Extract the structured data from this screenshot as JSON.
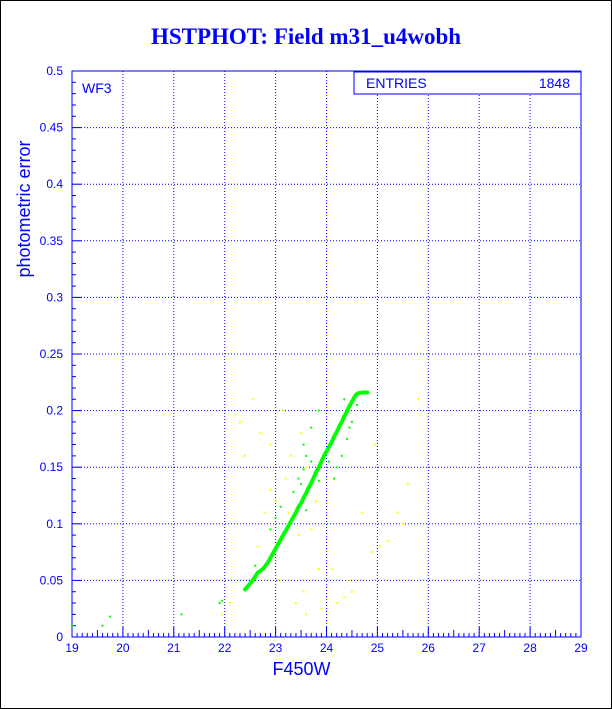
{
  "chart_data": {
    "type": "scatter",
    "title": "HSTPHOT: Field m31_u4wobh",
    "xlabel": "F450W",
    "ylabel": "photometric error",
    "xlim": [
      19,
      29
    ],
    "ylim": [
      0,
      0.5
    ],
    "x_ticks": [
      "19",
      "20",
      "21",
      "22",
      "23",
      "24",
      "25",
      "26",
      "27",
      "28",
      "29"
    ],
    "y_ticks": [
      "0",
      "0.05",
      "0.1",
      "0.15",
      "0.2",
      "0.25",
      "0.3",
      "0.35",
      "0.4",
      "0.45",
      "0.5"
    ],
    "grid": true,
    "panel_label": "WF3",
    "stats_box": {
      "label": "ENTRIES",
      "value": "1848"
    },
    "colors": {
      "axis": "#0000ff",
      "grid": "#0000ff",
      "title": "#0000ff",
      "series_main": "#00ff00",
      "series_outliers": "#ffff00"
    },
    "series": [
      {
        "color": "#00ff00",
        "points": [
          [
            19.0,
            0.01
          ],
          [
            19.6,
            0.01
          ],
          [
            19.75,
            0.018
          ],
          [
            21.15,
            0.02
          ],
          [
            21.9,
            0.03
          ],
          [
            21.95,
            0.032
          ],
          [
            22.4,
            0.042
          ],
          [
            22.55,
            0.05
          ],
          [
            22.65,
            0.057
          ],
          [
            22.75,
            0.06
          ],
          [
            22.85,
            0.066
          ],
          [
            22.9,
            0.07
          ],
          [
            22.95,
            0.074
          ],
          [
            23.0,
            0.078
          ],
          [
            23.05,
            0.082
          ],
          [
            23.1,
            0.086
          ],
          [
            23.15,
            0.09
          ],
          [
            23.2,
            0.094
          ],
          [
            23.25,
            0.098
          ],
          [
            23.3,
            0.102
          ],
          [
            23.35,
            0.106
          ],
          [
            23.4,
            0.11
          ],
          [
            23.45,
            0.115
          ],
          [
            23.5,
            0.118
          ],
          [
            23.55,
            0.123
          ],
          [
            23.6,
            0.127
          ],
          [
            23.65,
            0.132
          ],
          [
            23.7,
            0.136
          ],
          [
            23.75,
            0.141
          ],
          [
            23.8,
            0.146
          ],
          [
            23.85,
            0.15
          ],
          [
            23.9,
            0.155
          ],
          [
            23.95,
            0.16
          ],
          [
            24.0,
            0.164
          ],
          [
            24.05,
            0.168
          ],
          [
            24.1,
            0.172
          ],
          [
            24.15,
            0.177
          ],
          [
            24.2,
            0.181
          ],
          [
            24.25,
            0.186
          ],
          [
            24.3,
            0.19
          ],
          [
            24.35,
            0.195
          ],
          [
            24.4,
            0.199
          ],
          [
            24.45,
            0.204
          ],
          [
            24.5,
            0.208
          ],
          [
            24.55,
            0.212
          ],
          [
            24.6,
            0.215
          ],
          [
            24.7,
            0.216
          ],
          [
            24.8,
            0.216
          ],
          [
            23.55,
            0.148
          ],
          [
            23.5,
            0.135
          ],
          [
            23.7,
            0.155
          ],
          [
            23.6,
            0.16
          ],
          [
            23.45,
            0.14
          ],
          [
            23.55,
            0.17
          ],
          [
            23.0,
            0.105
          ],
          [
            22.9,
            0.095
          ],
          [
            23.1,
            0.115
          ],
          [
            23.7,
            0.185
          ],
          [
            23.85,
            0.2
          ],
          [
            24.2,
            0.15
          ],
          [
            24.3,
            0.16
          ],
          [
            24.4,
            0.175
          ],
          [
            24.45,
            0.185
          ],
          [
            24.15,
            0.14
          ],
          [
            22.6,
            0.063
          ],
          [
            23.35,
            0.128
          ],
          [
            23.6,
            0.112
          ],
          [
            23.85,
            0.138
          ],
          [
            24.05,
            0.155
          ],
          [
            24.6,
            0.205
          ],
          [
            24.35,
            0.21
          ],
          [
            24.5,
            0.19
          ]
        ]
      },
      {
        "color": "#ffff00",
        "points": [
          [
            22.3,
            0.19
          ],
          [
            22.4,
            0.16
          ],
          [
            22.55,
            0.21
          ],
          [
            22.7,
            0.18
          ],
          [
            22.8,
            0.11
          ],
          [
            22.65,
            0.08
          ],
          [
            22.9,
            0.17
          ],
          [
            23.15,
            0.2
          ],
          [
            23.2,
            0.14
          ],
          [
            23.3,
            0.16
          ],
          [
            23.5,
            0.18
          ],
          [
            23.6,
            0.15
          ],
          [
            23.7,
            0.095
          ],
          [
            23.8,
            0.12
          ],
          [
            23.45,
            0.09
          ],
          [
            23.25,
            0.11
          ],
          [
            23.0,
            0.12
          ],
          [
            22.9,
            0.13
          ],
          [
            23.4,
            0.03
          ],
          [
            23.55,
            0.04
          ],
          [
            23.6,
            0.02
          ],
          [
            23.9,
            0.025
          ],
          [
            24.2,
            0.03
          ],
          [
            24.35,
            0.035
          ],
          [
            24.5,
            0.04
          ],
          [
            24.9,
            0.075
          ],
          [
            25.05,
            0.08
          ],
          [
            25.2,
            0.085
          ],
          [
            25.4,
            0.11
          ],
          [
            25.6,
            0.135
          ],
          [
            25.8,
            0.21
          ],
          [
            24.1,
            0.06
          ],
          [
            24.45,
            0.05
          ],
          [
            22.1,
            0.03
          ],
          [
            21.95,
            0.02
          ],
          [
            23.05,
            0.05
          ],
          [
            24.7,
            0.11
          ],
          [
            25.5,
            0.1
          ],
          [
            24.95,
            0.17
          ],
          [
            23.85,
            0.06
          ]
        ]
      }
    ]
  }
}
